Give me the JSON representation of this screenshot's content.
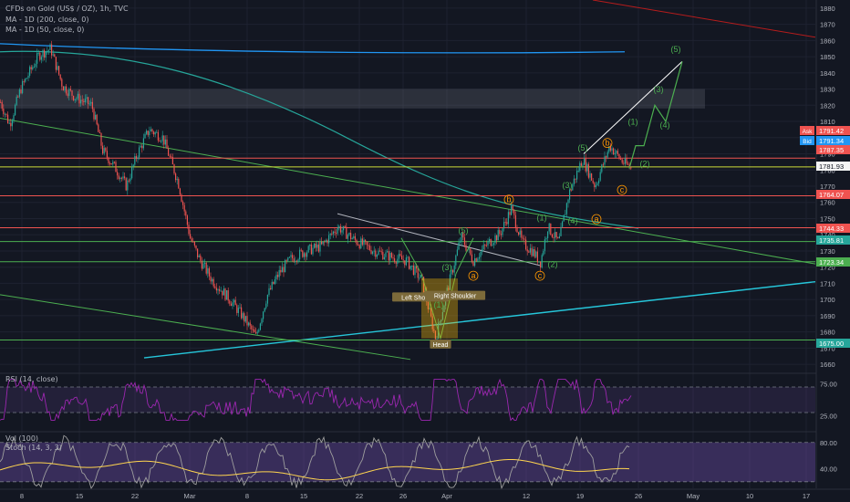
{
  "header": {
    "symbol_line": "CFDs on Gold (US$ / OZ), 1h, TVC",
    "ma_200_line": "MA - 1D (200, close, 0)",
    "ma_50_line": "MA - 1D (50, close, 0)"
  },
  "panes": {
    "rsi_label": "RSI (14, close)",
    "stoch_label": "Vol (100)",
    "stoch_label2": "Stoch (14, 3, 3)"
  },
  "colors": {
    "background": "#131722",
    "candle_up": "#26a69a",
    "candle_down": "#ef5350",
    "ma200": "#2196f3",
    "ma50": "#26a69a",
    "trend_green": "#4caf50",
    "wave_label": "#4caf50",
    "corrective_label": "#ff9800",
    "rsi_line": "#9c27b0",
    "stoch_k": "#a64dff",
    "stoch_d": "#ffd54f"
  },
  "chart_data": {
    "type": "candlestick",
    "instrument": "CFDs on Gold (US$ / OZ)",
    "timeframe": "1h",
    "x_ticks": [
      "8",
      "15",
      "22",
      "Mar",
      "8",
      "15",
      "22",
      "26",
      "Apr",
      "12",
      "19",
      "26",
      "May",
      "10",
      "17"
    ],
    "y_ticks": [
      1880,
      1870,
      1860,
      1850,
      1840,
      1830,
      1820,
      1810,
      1800,
      1790,
      1780,
      1770,
      1760,
      1750,
      1740,
      1730,
      1720,
      1710,
      1700,
      1690,
      1680,
      1670,
      1660
    ],
    "ylim": [
      1655,
      1885
    ],
    "price_path": [
      [
        0,
        1822
      ],
      [
        10,
        1808
      ],
      [
        22,
        1830
      ],
      [
        42,
        1851
      ],
      [
        55,
        1855
      ],
      [
        68,
        1832
      ],
      [
        82,
        1825
      ],
      [
        100,
        1820
      ],
      [
        112,
        1792
      ],
      [
        125,
        1782
      ],
      [
        138,
        1770
      ],
      [
        150,
        1790
      ],
      [
        163,
        1805
      ],
      [
        178,
        1800
      ],
      [
        195,
        1772
      ],
      [
        208,
        1738
      ],
      [
        218,
        1725
      ],
      [
        232,
        1712
      ],
      [
        250,
        1701
      ],
      [
        265,
        1690
      ],
      [
        280,
        1677
      ],
      [
        292,
        1702
      ],
      [
        305,
        1716
      ],
      [
        318,
        1725
      ],
      [
        335,
        1730
      ],
      [
        352,
        1733
      ],
      [
        370,
        1745
      ],
      [
        390,
        1736
      ],
      [
        410,
        1730
      ],
      [
        430,
        1726
      ],
      [
        445,
        1724
      ],
      [
        462,
        1712
      ],
      [
        477,
        1676
      ],
      [
        490,
        1706
      ],
      [
        505,
        1739
      ],
      [
        518,
        1724
      ],
      [
        535,
        1735
      ],
      [
        548,
        1741
      ],
      [
        560,
        1756
      ],
      [
        572,
        1735
      ],
      [
        583,
        1730
      ],
      [
        592,
        1723
      ],
      [
        600,
        1745
      ],
      [
        612,
        1735
      ],
      [
        623,
        1765
      ],
      [
        638,
        1787
      ],
      [
        652,
        1770
      ],
      [
        668,
        1795
      ],
      [
        682,
        1785
      ],
      [
        692,
        1781
      ]
    ],
    "projection_path": [
      [
        690,
        1781
      ],
      [
        697,
        1795
      ],
      [
        706,
        1795
      ],
      [
        718,
        1820
      ],
      [
        730,
        1810
      ],
      [
        748,
        1847
      ]
    ],
    "price_labels": [
      {
        "label": "Ask",
        "value": "1791.42",
        "color": "#ef5350"
      },
      {
        "label": "Bid",
        "value": "1791.34",
        "color": "#2196f3"
      },
      {
        "label": "",
        "value": "1787.35",
        "color": "#ef5350"
      },
      {
        "label": "",
        "value": "1781.93",
        "color": "#f5f5f5"
      },
      {
        "label": "",
        "value": "1764.07",
        "color": "#ef5350"
      },
      {
        "label": "",
        "value": "1744.33",
        "color": "#ef5350"
      },
      {
        "label": "",
        "value": "1735.81",
        "color": "#26a69a"
      },
      {
        "label": "",
        "value": "1723.34",
        "color": "#4caf50"
      },
      {
        "label": "",
        "value": "1675.00",
        "color": "#26a69a"
      }
    ],
    "horizontal_levels": [
      {
        "price": 1787.35,
        "color": "#ef5350"
      },
      {
        "price": 1781.93,
        "color": "#cddc39"
      },
      {
        "price": 1764.07,
        "color": "#ef5350"
      },
      {
        "price": 1744.33,
        "color": "#ef5350"
      },
      {
        "price": 1735.81,
        "color": "#4caf50"
      },
      {
        "price": 1723.34,
        "color": "#4caf50"
      },
      {
        "price": 1675.0,
        "color": "#4caf50"
      }
    ],
    "zone": {
      "from": 1818,
      "to": 1830
    },
    "elliott_labels": [
      {
        "text": "(5)",
        "x": 741,
        "y": 1853,
        "color": "#4caf50"
      },
      {
        "text": "(3)",
        "x": 722,
        "y": 1828,
        "color": "#4caf50"
      },
      {
        "text": "(4)",
        "x": 729,
        "y": 1806,
        "color": "#4caf50"
      },
      {
        "text": "(1)",
        "x": 694,
        "y": 1808,
        "color": "#4caf50"
      },
      {
        "text": "(2)",
        "x": 707,
        "y": 1782,
        "color": "#4caf50"
      },
      {
        "text": "b",
        "x": 666,
        "y": 1795,
        "color": "#ff9800",
        "circled": true
      },
      {
        "text": "(5)",
        "x": 639,
        "y": 1792,
        "color": "#4caf50"
      },
      {
        "text": "(3)",
        "x": 622,
        "y": 1769,
        "color": "#4caf50"
      },
      {
        "text": "c",
        "x": 682,
        "y": 1766,
        "color": "#ff9800",
        "circled": true
      },
      {
        "text": "a",
        "x": 654,
        "y": 1748,
        "color": "#ff9800",
        "circled": true
      },
      {
        "text": "(4)",
        "x": 628,
        "y": 1747,
        "color": "#4caf50"
      },
      {
        "text": "(1)",
        "x": 594,
        "y": 1749,
        "color": "#4caf50"
      },
      {
        "text": "b",
        "x": 558,
        "y": 1760,
        "color": "#ff9800",
        "circled": true
      },
      {
        "text": "(5)",
        "x": 508,
        "y": 1741,
        "color": "#4caf50"
      },
      {
        "text": "(2)",
        "x": 606,
        "y": 1720,
        "color": "#4caf50"
      },
      {
        "text": "c",
        "x": 592,
        "y": 1713,
        "color": "#ff9800",
        "circled": true
      },
      {
        "text": "a",
        "x": 519,
        "y": 1713,
        "color": "#ff9800",
        "circled": true
      },
      {
        "text": "(3)",
        "x": 490,
        "y": 1718,
        "color": "#4caf50"
      },
      {
        "text": "(1)",
        "x": 481,
        "y": 1695,
        "color": "#4caf50"
      }
    ],
    "pattern_labels": [
      {
        "text": "Left Shoulder",
        "x": 461,
        "y": 1701
      },
      {
        "text": "Right Shoulder",
        "x": 499,
        "y": 1702
      },
      {
        "text": "Head",
        "x": 483,
        "y": 1672
      }
    ],
    "rsi": {
      "label": "RSI (14, close)",
      "ticks": [
        75.0,
        25.0
      ],
      "ylim": [
        10,
        90
      ],
      "overbought": 70,
      "oversold": 30
    },
    "stoch": {
      "label": "Stoch (14, 3, 3)",
      "ticks": [
        80.0,
        40.0
      ],
      "ylim": [
        10,
        95
      ],
      "upper": 80,
      "lower": 20
    }
  }
}
